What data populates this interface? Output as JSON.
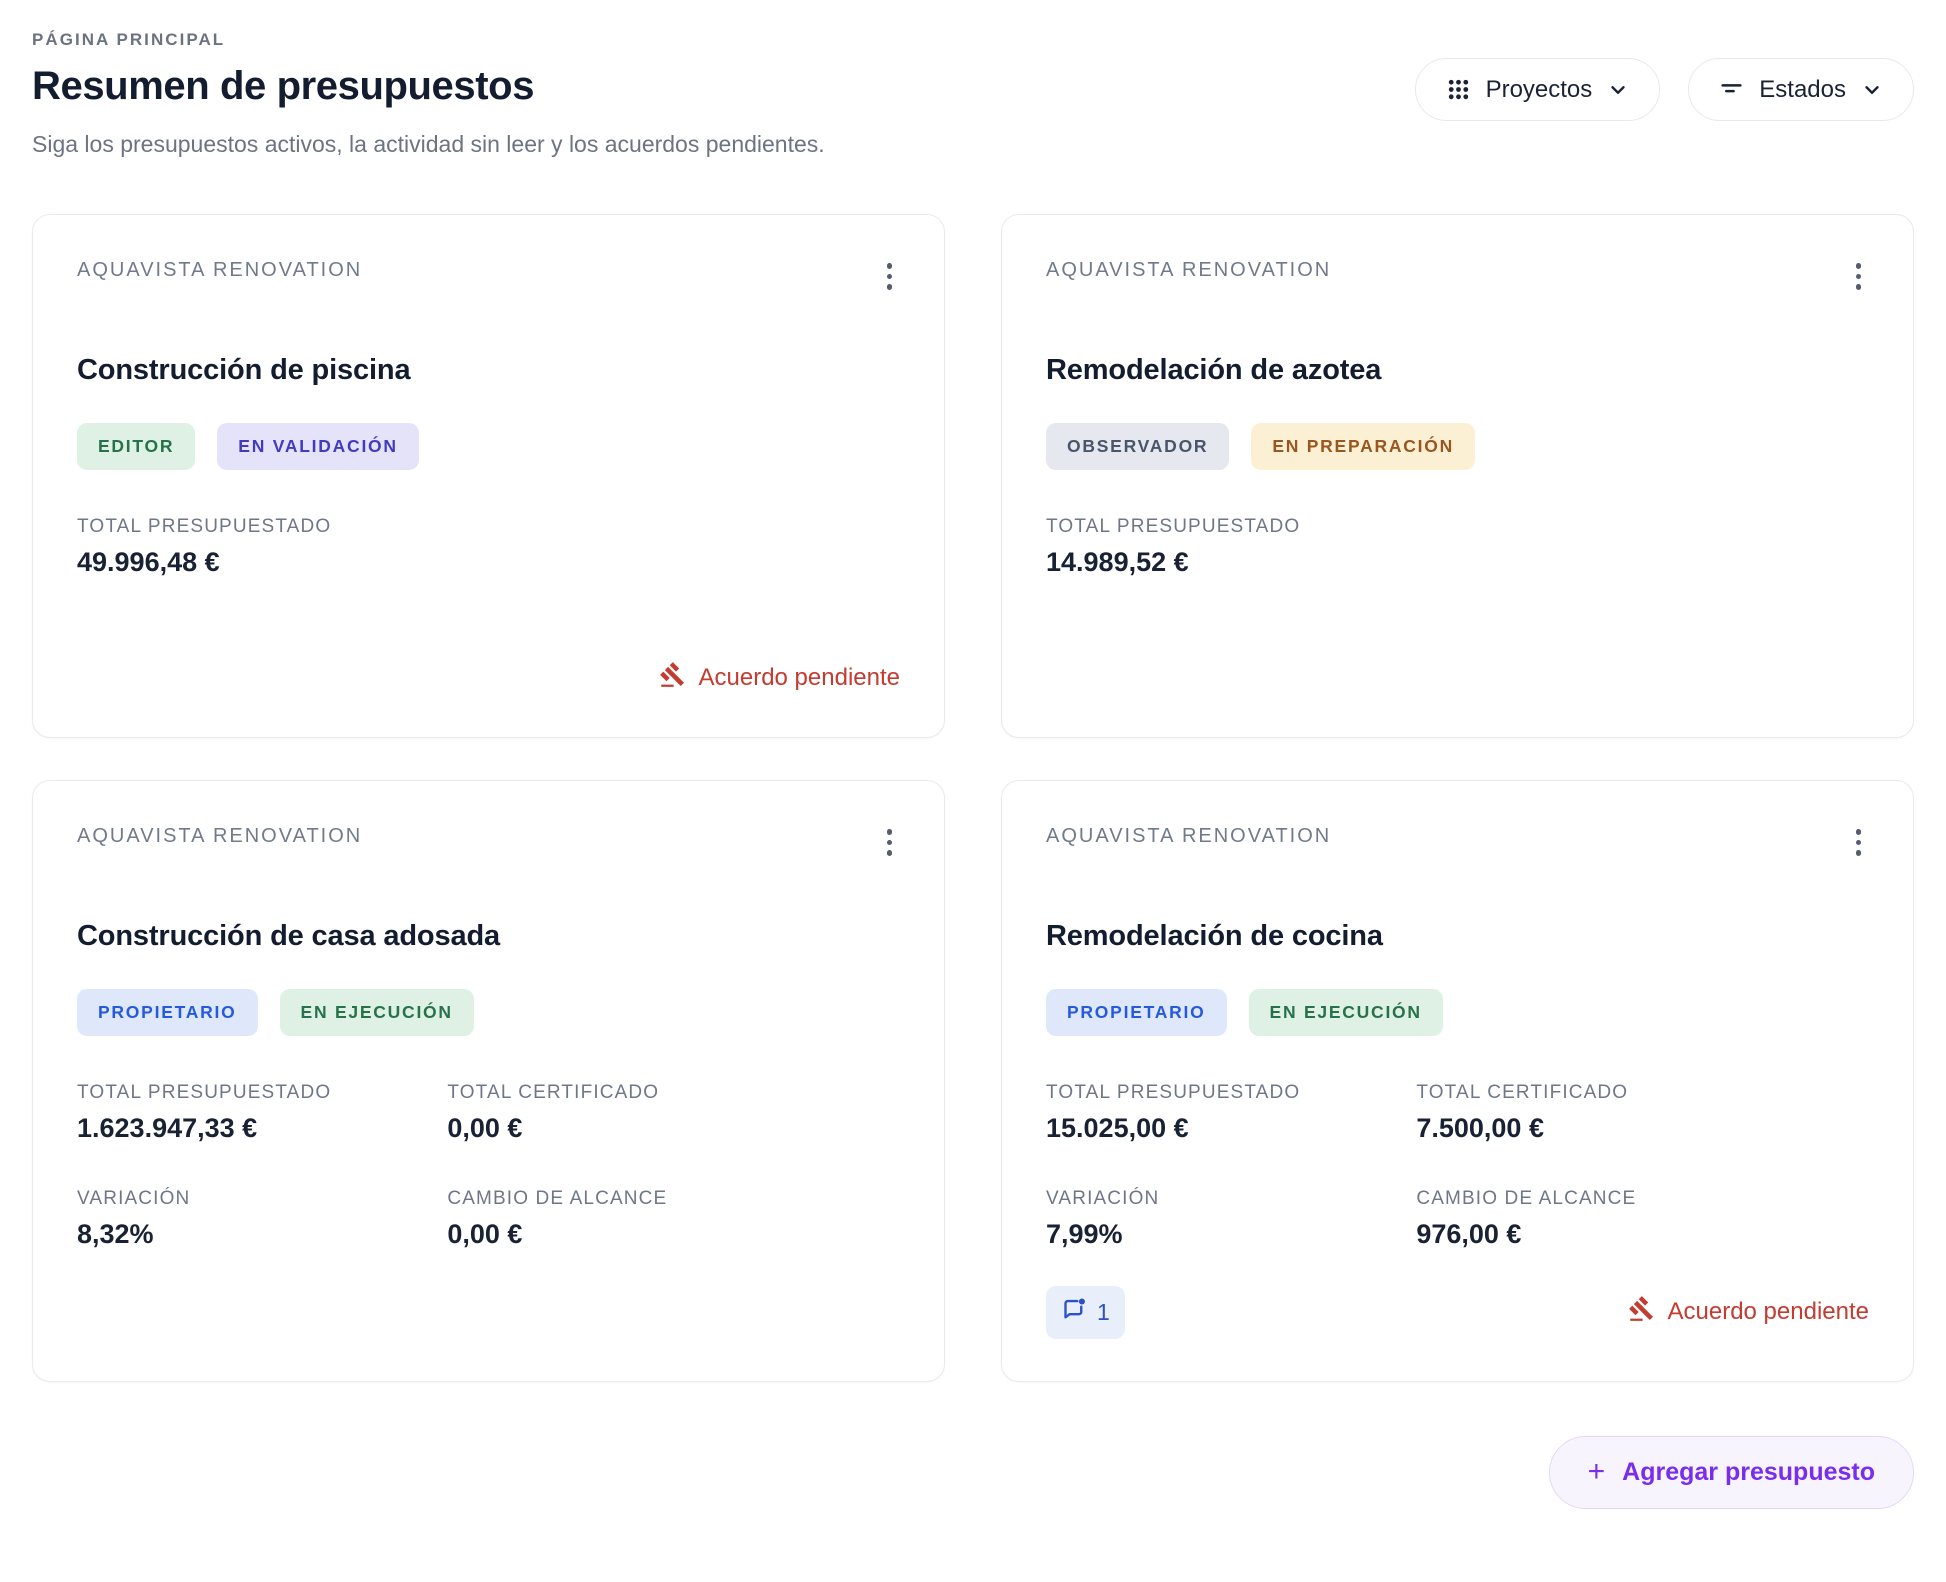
{
  "page": {
    "breadcrumb": "PÁGINA PRINCIPAL",
    "title": "Resumen de presupuestos",
    "subtitle": "Siga los presupuestos activos, la actividad sin leer y los acuerdos pendientes."
  },
  "filters": {
    "projects_label": "Proyectos",
    "states_label": "Estados"
  },
  "labels": {
    "pending_agreement": "Acuerdo pendiente",
    "add_budget": "Agregar presupuesto",
    "add_plus": "+"
  },
  "colors": {
    "accent_purple": "#7a2ded",
    "alert_red": "#c43b30",
    "chip_blue": "#2a50cb",
    "badge_green_bg": "#def1e4",
    "badge_green_text": "#27724a",
    "badge_indigo_bg": "#e5e3fa",
    "badge_indigo_text": "#413bc0",
    "badge_gray_bg": "#e5e8ee",
    "badge_gray_text": "#49556a",
    "badge_amber_bg": "#fcf0d4",
    "badge_amber_text": "#99561f",
    "badge_blue_bg": "#dfe8fb",
    "badge_blue_text": "#2559de"
  },
  "cards": [
    {
      "org": "AQUAVISTA RENOVATION",
      "title": "Construcción de piscina",
      "badges": [
        {
          "label": "EDITOR",
          "type": "green"
        },
        {
          "label": "EN VALIDACIÓN",
          "type": "indigo"
        }
      ],
      "stats": [
        {
          "label": "TOTAL PRESUPUESTADO",
          "value": "49.996,48 €"
        }
      ],
      "comments": null,
      "pending_agreement": true
    },
    {
      "org": "AQUAVISTA RENOVATION",
      "title": "Remodelación de azotea",
      "badges": [
        {
          "label": "OBSERVADOR",
          "type": "gray"
        },
        {
          "label": "EN PREPARACIÓN",
          "type": "amber"
        }
      ],
      "stats": [
        {
          "label": "TOTAL PRESUPUESTADO",
          "value": "14.989,52 €"
        }
      ],
      "comments": null,
      "pending_agreement": false
    },
    {
      "org": "AQUAVISTA RENOVATION",
      "title": "Construcción de casa adosada",
      "badges": [
        {
          "label": "PROPIETARIO",
          "type": "blue"
        },
        {
          "label": "EN EJECUCIÓN",
          "type": "green"
        }
      ],
      "stats": [
        {
          "label": "TOTAL PRESUPUESTADO",
          "value": "1.623.947,33 €"
        },
        {
          "label": "TOTAL CERTIFICADO",
          "value": "0,00 €"
        },
        {
          "label": "VARIACIÓN",
          "value": "8,32%"
        },
        {
          "label": "CAMBIO DE ALCANCE",
          "value": "0,00 €"
        }
      ],
      "comments": null,
      "pending_agreement": false
    },
    {
      "org": "AQUAVISTA RENOVATION",
      "title": "Remodelación de cocina",
      "badges": [
        {
          "label": "PROPIETARIO",
          "type": "blue"
        },
        {
          "label": "EN EJECUCIÓN",
          "type": "green"
        }
      ],
      "stats": [
        {
          "label": "TOTAL PRESUPUESTADO",
          "value": "15.025,00 €"
        },
        {
          "label": "TOTAL CERTIFICADO",
          "value": "7.500,00 €"
        },
        {
          "label": "VARIACIÓN",
          "value": "7,99%"
        },
        {
          "label": "CAMBIO DE ALCANCE",
          "value": "976,00 €"
        }
      ],
      "comments": "1",
      "pending_agreement": true
    }
  ]
}
